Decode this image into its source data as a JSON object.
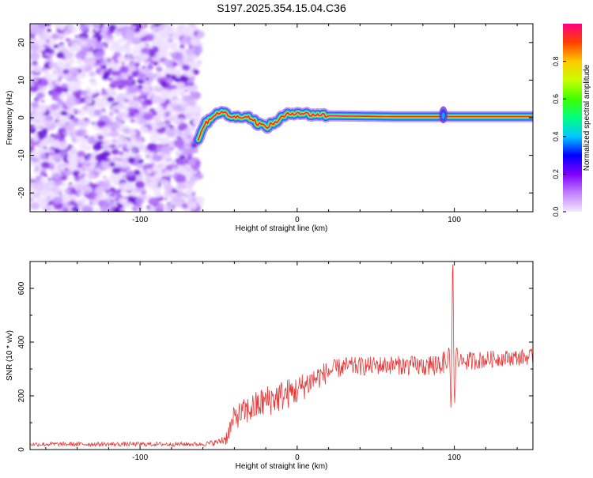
{
  "figure_title": "S197.2025.354.15.04.C36",
  "chart_data": [
    {
      "type": "heatmap",
      "title": "S197.2025.354.15.04.C36",
      "xlabel": "Height of straight line (km)",
      "ylabel": "Frequency (Hz)",
      "xlim": [
        -170,
        150
      ],
      "ylim": [
        -25,
        25
      ],
      "xticks": [
        -100,
        0,
        100
      ],
      "yticks": [
        -20,
        -10,
        0,
        10,
        20
      ],
      "colorbar": {
        "label": "Normalized spectral amplitude",
        "range": [
          0.0,
          1.0
        ],
        "ticks": [
          0.0,
          0.2,
          0.4,
          0.6,
          0.8
        ],
        "colors": [
          "#f4e8ff",
          "#c080ff",
          "#8000ff",
          "#0000ff",
          "#00c8ff",
          "#00ff80",
          "#40ff00",
          "#c8ff00",
          "#ffc800",
          "#ff4000",
          "#ff0080"
        ]
      },
      "noise_region_x": [
        -170,
        -62
      ],
      "signal_track": [
        {
          "x": -63,
          "y": -5.5
        },
        {
          "x": -60,
          "y": -2.5
        },
        {
          "x": -55,
          "y": 0.0
        },
        {
          "x": -50,
          "y": 1.5
        },
        {
          "x": -45,
          "y": 1.0
        },
        {
          "x": -40,
          "y": 0.0
        },
        {
          "x": -35,
          "y": 0.5
        },
        {
          "x": -30,
          "y": 0.0
        },
        {
          "x": -25,
          "y": -1.5
        },
        {
          "x": -20,
          "y": -2.5
        },
        {
          "x": -15,
          "y": -1.5
        },
        {
          "x": -10,
          "y": 0.0
        },
        {
          "x": -5,
          "y": 1.0
        },
        {
          "x": 0,
          "y": 1.5
        },
        {
          "x": 5,
          "y": 1.0
        },
        {
          "x": 10,
          "y": 0.8
        },
        {
          "x": 15,
          "y": 0.8
        },
        {
          "x": 20,
          "y": 0.5
        },
        {
          "x": 60,
          "y": 0.3
        },
        {
          "x": 100,
          "y": 0.3
        },
        {
          "x": 150,
          "y": 0.3
        }
      ]
    },
    {
      "type": "line",
      "xlabel": "Height of straight line (km)",
      "ylabel": "SNR (10 * v/v)",
      "xlim": [
        -170,
        150
      ],
      "ylim": [
        0,
        700
      ],
      "xticks": [
        -100,
        0,
        100
      ],
      "yticks": [
        0,
        200,
        400,
        600
      ],
      "color": "#e83a3a",
      "envelope": {
        "x": [
          -170,
          -60,
          -50,
          -45,
          -40,
          -30,
          -20,
          -10,
          0,
          10,
          20,
          30,
          40,
          60,
          80,
          90,
          100,
          110,
          130,
          150
        ],
        "mean": [
          20,
          20,
          28,
          45,
          120,
          150,
          180,
          200,
          220,
          260,
          290,
          310,
          310,
          315,
          310,
          320,
          330,
          330,
          340,
          345
        ],
        "spread": [
          8,
          8,
          12,
          30,
          45,
          55,
          60,
          60,
          55,
          50,
          40,
          35,
          35,
          35,
          38,
          45,
          40,
          35,
          30,
          30
        ]
      },
      "peak": {
        "x": 99,
        "y": 690
      }
    }
  ]
}
